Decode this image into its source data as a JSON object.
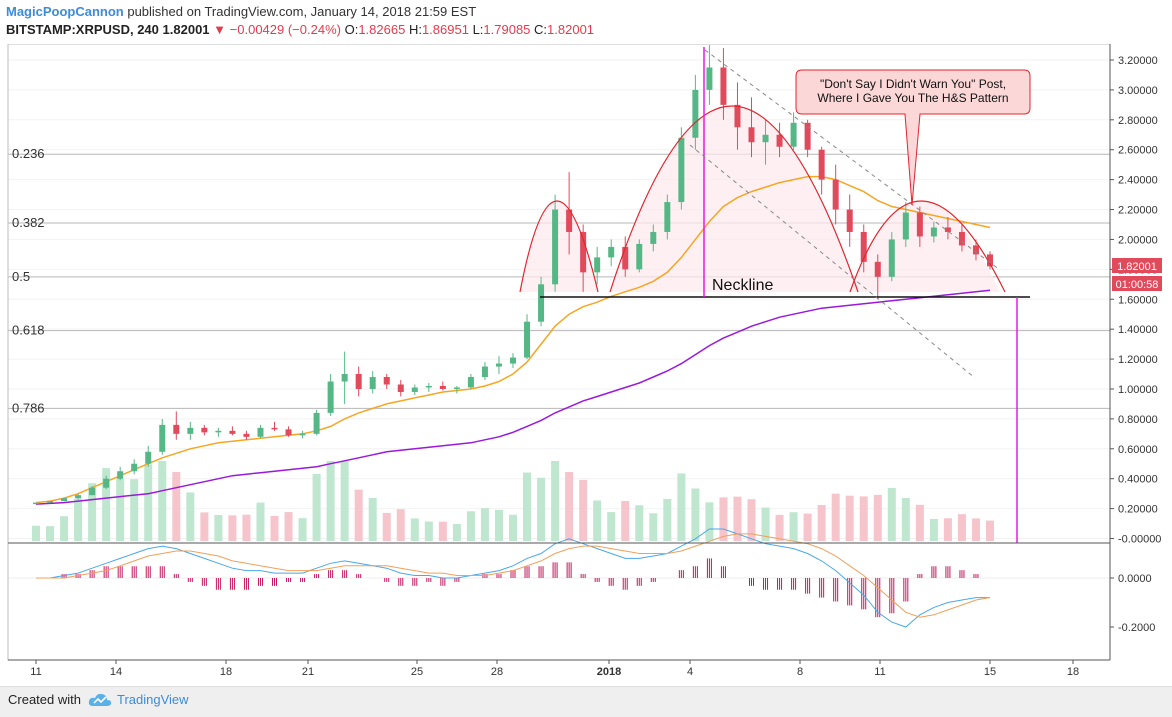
{
  "header": {
    "author": "MagicPoopCannon",
    "published": "published on TradingView.com, January 14, 2018 21:59 EST",
    "symbol": "BITSTAMP:XRPUSD, 240",
    "price": "1.82001",
    "change": "−0.00429 (−0.24%)",
    "o_label": "O:",
    "o_value": "1.82665",
    "h_label": "H:",
    "h_value": "1.86951",
    "l_label": "L:",
    "l_value": "1.79085",
    "c_label": "C:",
    "c_value": "1.82001"
  },
  "annotations": {
    "neckline": "Neckline",
    "callout_line1": "\"Don't Say I Didn't Warn You\" Post,",
    "callout_line2": "Where I Gave You The H&S Pattern",
    "price_badge": "1.82001",
    "timer_badge": "01:00:58"
  },
  "footer": {
    "created_with": "Created with",
    "brand": "TradingView"
  },
  "colors": {
    "up": "#56b786",
    "down": "#e04a5b",
    "ma_orange": "#f5a623",
    "ma_purple": "#9b19d8",
    "hs_curve": "#e0262e",
    "magenta": "#e619e6",
    "macd_blue": "#4aa8e8",
    "macd_orange": "#f0a05a",
    "hist": "#c2185b"
  },
  "chart_data": {
    "type": "candlestick",
    "price_axis_ticks": [
      "3.20000",
      "3.00000",
      "2.80000",
      "2.60000",
      "2.40000",
      "2.20000",
      "2.00000",
      "1.80000",
      "1.60000",
      "1.40000",
      "1.20000",
      "1.00000",
      "0.80000",
      "0.60000",
      "0.40000",
      "0.20000",
      "-0.00000"
    ],
    "fib_levels": [
      {
        "label": "0.236",
        "price": 2.57
      },
      {
        "label": "0.382",
        "price": 2.11
      },
      {
        "label": "0.5",
        "price": 1.75
      },
      {
        "label": "0.618",
        "price": 1.39
      },
      {
        "label": "0.786",
        "price": 0.87
      }
    ],
    "x_ticks": [
      "11",
      "14",
      "18",
      "21",
      "25",
      "28",
      "2018",
      "4",
      "8",
      "11",
      "15",
      "18"
    ],
    "macd_axis_ticks": [
      "0.0000",
      "-0.2000"
    ],
    "ohlc": [
      [
        0.23,
        0.24,
        0.23,
        0.24
      ],
      [
        0.24,
        0.25,
        0.24,
        0.25
      ],
      [
        0.25,
        0.27,
        0.25,
        0.27
      ],
      [
        0.27,
        0.3,
        0.26,
        0.29
      ],
      [
        0.29,
        0.35,
        0.29,
        0.34
      ],
      [
        0.34,
        0.42,
        0.33,
        0.4
      ],
      [
        0.4,
        0.48,
        0.39,
        0.45
      ],
      [
        0.45,
        0.53,
        0.43,
        0.5
      ],
      [
        0.5,
        0.62,
        0.48,
        0.58
      ],
      [
        0.58,
        0.8,
        0.56,
        0.76
      ],
      [
        0.76,
        0.85,
        0.66,
        0.7
      ],
      [
        0.7,
        0.78,
        0.66,
        0.74
      ],
      [
        0.74,
        0.76,
        0.69,
        0.71
      ],
      [
        0.71,
        0.74,
        0.68,
        0.72
      ],
      [
        0.72,
        0.75,
        0.69,
        0.7
      ],
      [
        0.7,
        0.72,
        0.66,
        0.68
      ],
      [
        0.68,
        0.76,
        0.67,
        0.74
      ],
      [
        0.74,
        0.78,
        0.72,
        0.73
      ],
      [
        0.73,
        0.75,
        0.68,
        0.69
      ],
      [
        0.69,
        0.72,
        0.67,
        0.7
      ],
      [
        0.7,
        0.86,
        0.69,
        0.84
      ],
      [
        0.84,
        1.1,
        0.82,
        1.05
      ],
      [
        1.05,
        1.25,
        0.9,
        1.1
      ],
      [
        1.1,
        1.15,
        0.95,
        1.0
      ],
      [
        1.0,
        1.12,
        0.97,
        1.08
      ],
      [
        1.08,
        1.1,
        1.0,
        1.03
      ],
      [
        1.03,
        1.06,
        0.95,
        0.98
      ],
      [
        0.98,
        1.03,
        0.96,
        1.01
      ],
      [
        1.01,
        1.04,
        0.98,
        1.02
      ],
      [
        1.02,
        1.05,
        0.99,
        1.0
      ],
      [
        1.0,
        1.02,
        0.97,
        1.01
      ],
      [
        1.01,
        1.1,
        1.0,
        1.08
      ],
      [
        1.08,
        1.18,
        1.06,
        1.15
      ],
      [
        1.15,
        1.22,
        1.1,
        1.17
      ],
      [
        1.17,
        1.24,
        1.14,
        1.21
      ],
      [
        1.21,
        1.5,
        1.2,
        1.45
      ],
      [
        1.45,
        1.75,
        1.42,
        1.7
      ],
      [
        1.7,
        2.3,
        1.65,
        2.2
      ],
      [
        2.2,
        2.45,
        1.9,
        2.05
      ],
      [
        2.05,
        2.1,
        1.65,
        1.78
      ],
      [
        1.78,
        1.95,
        1.7,
        1.88
      ],
      [
        1.88,
        2.0,
        1.82,
        1.95
      ],
      [
        1.95,
        2.02,
        1.75,
        1.8
      ],
      [
        1.8,
        2.0,
        1.78,
        1.97
      ],
      [
        1.97,
        2.1,
        1.92,
        2.05
      ],
      [
        2.05,
        2.3,
        2.0,
        2.25
      ],
      [
        2.25,
        2.75,
        2.2,
        2.68
      ],
      [
        2.68,
        3.1,
        2.6,
        3.0
      ],
      [
        3.0,
        3.3,
        2.9,
        3.15
      ],
      [
        3.15,
        3.28,
        2.8,
        2.9
      ],
      [
        2.9,
        3.05,
        2.6,
        2.75
      ],
      [
        2.75,
        2.95,
        2.55,
        2.65
      ],
      [
        2.65,
        2.8,
        2.5,
        2.7
      ],
      [
        2.7,
        2.78,
        2.55,
        2.62
      ],
      [
        2.62,
        2.85,
        2.6,
        2.78
      ],
      [
        2.78,
        2.8,
        2.55,
        2.6
      ],
      [
        2.6,
        2.62,
        2.3,
        2.4
      ],
      [
        2.4,
        2.5,
        2.1,
        2.2
      ],
      [
        2.2,
        2.3,
        1.95,
        2.05
      ],
      [
        2.05,
        2.1,
        1.78,
        1.85
      ],
      [
        1.85,
        1.9,
        1.6,
        1.75
      ],
      [
        1.75,
        2.05,
        1.72,
        2.0
      ],
      [
        2.0,
        2.25,
        1.95,
        2.18
      ],
      [
        2.18,
        2.22,
        1.95,
        2.02
      ],
      [
        2.02,
        2.12,
        1.98,
        2.08
      ],
      [
        2.08,
        2.15,
        2.0,
        2.05
      ],
      [
        2.05,
        2.1,
        1.92,
        1.96
      ],
      [
        1.96,
        2.0,
        1.86,
        1.9
      ],
      [
        1.9,
        1.92,
        1.8,
        1.82
      ]
    ],
    "ma_orange": [
      0.24,
      0.25,
      0.27,
      0.3,
      0.34,
      0.38,
      0.42,
      0.46,
      0.5,
      0.54,
      0.57,
      0.6,
      0.62,
      0.64,
      0.65,
      0.66,
      0.67,
      0.68,
      0.69,
      0.7,
      0.72,
      0.75,
      0.8,
      0.84,
      0.87,
      0.9,
      0.92,
      0.94,
      0.96,
      0.98,
      0.99,
      1.0,
      1.02,
      1.05,
      1.1,
      1.18,
      1.3,
      1.42,
      1.5,
      1.55,
      1.58,
      1.62,
      1.65,
      1.68,
      1.72,
      1.78,
      1.88,
      2.0,
      2.12,
      2.22,
      2.28,
      2.32,
      2.35,
      2.38,
      2.4,
      2.42,
      2.42,
      2.4,
      2.36,
      2.32,
      2.26,
      2.22,
      2.2,
      2.18,
      2.16,
      2.14,
      2.12,
      2.1,
      2.08
    ],
    "ma_purple": [
      0.23,
      0.235,
      0.24,
      0.25,
      0.26,
      0.27,
      0.28,
      0.29,
      0.3,
      0.32,
      0.34,
      0.36,
      0.38,
      0.4,
      0.42,
      0.43,
      0.44,
      0.45,
      0.46,
      0.47,
      0.48,
      0.5,
      0.52,
      0.54,
      0.56,
      0.58,
      0.59,
      0.6,
      0.61,
      0.62,
      0.63,
      0.64,
      0.66,
      0.68,
      0.71,
      0.75,
      0.79,
      0.84,
      0.88,
      0.92,
      0.95,
      0.98,
      1.01,
      1.04,
      1.08,
      1.12,
      1.17,
      1.23,
      1.29,
      1.34,
      1.38,
      1.42,
      1.45,
      1.48,
      1.5,
      1.52,
      1.54,
      1.55,
      1.56,
      1.57,
      1.58,
      1.59,
      1.6,
      1.61,
      1.62,
      1.63,
      1.64,
      1.65,
      1.66
    ],
    "macd": [
      0.0,
      0.0,
      0.01,
      0.02,
      0.04,
      0.06,
      0.08,
      0.1,
      0.12,
      0.13,
      0.12,
      0.1,
      0.08,
      0.06,
      0.04,
      0.03,
      0.03,
      0.02,
      0.02,
      0.02,
      0.04,
      0.06,
      0.07,
      0.06,
      0.05,
      0.04,
      0.02,
      0.01,
      0.01,
      0.0,
      0.0,
      0.01,
      0.02,
      0.03,
      0.05,
      0.08,
      0.1,
      0.14,
      0.16,
      0.14,
      0.12,
      0.1,
      0.08,
      0.08,
      0.09,
      0.1,
      0.13,
      0.16,
      0.2,
      0.2,
      0.18,
      0.16,
      0.14,
      0.13,
      0.12,
      0.1,
      0.07,
      0.03,
      -0.02,
      -0.07,
      -0.14,
      -0.18,
      -0.2,
      -0.15,
      -0.12,
      -0.1,
      -0.09,
      -0.08,
      -0.08
    ],
    "signal": [
      0.0,
      0.0,
      0.0,
      0.01,
      0.02,
      0.03,
      0.05,
      0.07,
      0.09,
      0.1,
      0.11,
      0.11,
      0.1,
      0.09,
      0.07,
      0.06,
      0.05,
      0.04,
      0.03,
      0.03,
      0.03,
      0.04,
      0.05,
      0.05,
      0.05,
      0.05,
      0.04,
      0.03,
      0.02,
      0.02,
      0.01,
      0.01,
      0.01,
      0.02,
      0.03,
      0.05,
      0.07,
      0.1,
      0.12,
      0.13,
      0.13,
      0.12,
      0.11,
      0.1,
      0.1,
      0.1,
      0.11,
      0.13,
      0.15,
      0.17,
      0.18,
      0.18,
      0.17,
      0.16,
      0.15,
      0.14,
      0.12,
      0.09,
      0.05,
      0.01,
      -0.04,
      -0.09,
      -0.14,
      -0.16,
      -0.15,
      -0.13,
      -0.11,
      -0.09,
      -0.08
    ]
  }
}
